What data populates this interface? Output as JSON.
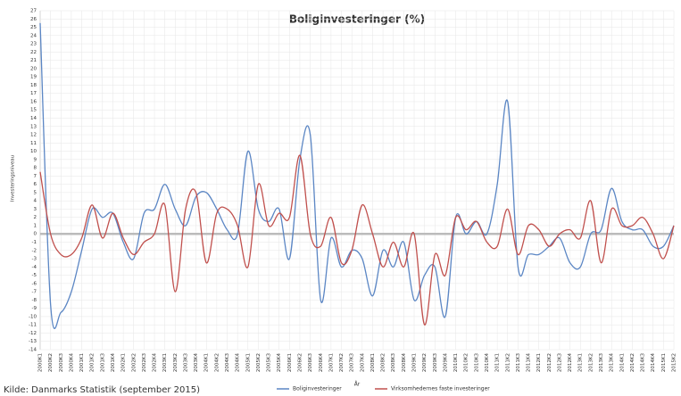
{
  "chart_data": {
    "type": "line",
    "title": "Boliginvesteringer (%)",
    "y_label": "Investeringsniveau",
    "x_label": "År",
    "source": "Kilde: Danmarks Statistik (september 2015)",
    "categories": [
      "2000K1",
      "2000K2",
      "2000K3",
      "2000K4",
      "2001K1",
      "2001K2",
      "2001K3",
      "2001K4",
      "2002K1",
      "2002K2",
      "2002K3",
      "2002K4",
      "2003K1",
      "2003K2",
      "2003K3",
      "2003K4",
      "2004K1",
      "2004K2",
      "2004K3",
      "2004K4",
      "2005K1",
      "2005K2",
      "2005K3",
      "2005K4",
      "2006K1",
      "2006K2",
      "2006K3",
      "2006K4",
      "2007K1",
      "2007K2",
      "2007K3",
      "2007K4",
      "2008K1",
      "2008K2",
      "2008K3",
      "2008K4",
      "2009K1",
      "2009K2",
      "2009K3",
      "2009K4",
      "2010K1",
      "2010K2",
      "2010K3",
      "2010K4",
      "2011K1",
      "2011K2",
      "2011K3",
      "2011K4",
      "2012K1",
      "2012K2",
      "2012K3",
      "2012K4",
      "2013K1",
      "2013K2",
      "2013K3",
      "2013K4",
      "2014K1",
      "2014K2",
      "2014K3",
      "2014K4",
      "2015K1",
      "2015K2"
    ],
    "series": [
      {
        "name": "Boliginvesteringer",
        "color": "#5b86c4",
        "values": [
          25.5,
          -8.5,
          -9.5,
          -7,
          -2,
          3,
          2,
          2.5,
          -1,
          -3,
          2.5,
          3,
          6,
          3,
          1,
          4.5,
          5,
          3,
          0.5,
          0,
          10,
          3,
          1.5,
          3,
          -3,
          9,
          12,
          -8,
          -0.5,
          -4,
          -2,
          -3,
          -7.5,
          -2,
          -4,
          -1,
          -8,
          -5,
          -4,
          -10,
          2,
          0,
          1.5,
          0,
          6,
          16,
          -4,
          -2.5,
          -2.5,
          -1.5,
          -0.5,
          -3.5,
          -4,
          0,
          0.5,
          5.5,
          1.5,
          0.5,
          0.5,
          -1.5,
          -1.5,
          1
        ]
      },
      {
        "name": "Virksomhedernes faste investeringer",
        "color": "#c0504d",
        "values": [
          7.5,
          0,
          -2.5,
          -2.5,
          -0.5,
          3.5,
          -0.5,
          2.5,
          -0.5,
          -2.5,
          -1,
          0,
          3.5,
          -7,
          3,
          5,
          -3.5,
          2.5,
          3,
          1,
          -4,
          6,
          1,
          2.5,
          2,
          9.5,
          0,
          -1.5,
          2,
          -3.5,
          -2,
          3.5,
          0,
          -4,
          -1,
          -4,
          0,
          -11,
          -2.5,
          -5,
          2,
          0.5,
          1.5,
          -1,
          -1.5,
          3,
          -2.5,
          1,
          0.5,
          -1.5,
          0,
          0.5,
          -0.5,
          4,
          -3.5,
          3,
          1,
          1,
          2,
          0,
          -3,
          1
        ]
      }
    ],
    "ylim": [
      -14,
      27
    ],
    "yticks": [
      -14,
      -13,
      -12,
      -11,
      -10,
      -9,
      -8,
      -7,
      -6,
      -5,
      -4,
      -3,
      -2,
      -1,
      0,
      1,
      2,
      3,
      4,
      5,
      6,
      7,
      8,
      9,
      10,
      11,
      12,
      13,
      14,
      15,
      16,
      17,
      18,
      19,
      20,
      21,
      22,
      23,
      24,
      25,
      26,
      27
    ],
    "grid": true
  }
}
